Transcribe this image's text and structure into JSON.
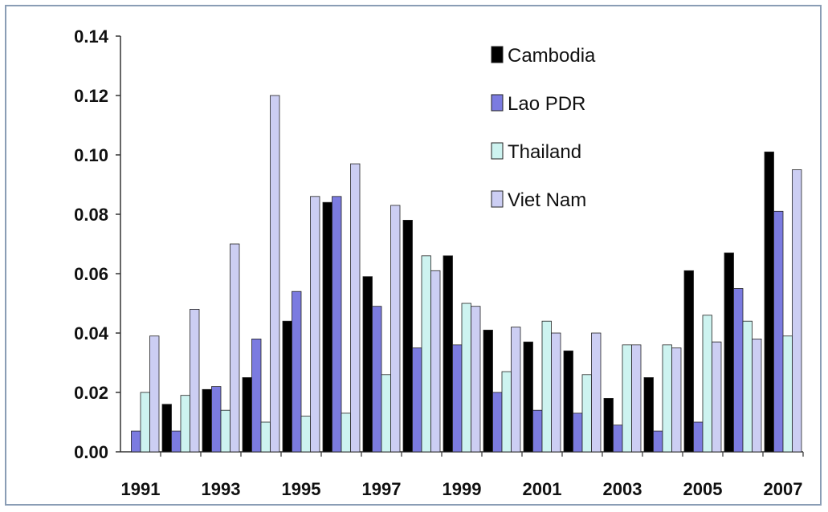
{
  "chart_data": {
    "type": "bar",
    "categories": [
      "1991",
      "1992",
      "1993",
      "1994",
      "1995",
      "1996",
      "1997",
      "1998",
      "1999",
      "2000",
      "2001",
      "2002",
      "2003",
      "2004",
      "2005",
      "2006",
      "2007"
    ],
    "x_tick_labels": [
      "1991",
      "1993",
      "1995",
      "1997",
      "1999",
      "2001",
      "2003",
      "2005",
      "2007"
    ],
    "y_tick_labels": [
      "0.00",
      "0.02",
      "0.04",
      "0.06",
      "0.08",
      "0.10",
      "0.12",
      "0.14"
    ],
    "ylim": [
      0,
      0.14
    ],
    "grid": false,
    "legend_position": "top-right",
    "series": [
      {
        "name": "Cambodia",
        "color": "#000000",
        "values": [
          0.0,
          0.016,
          0.021,
          0.025,
          0.044,
          0.084,
          0.059,
          0.078,
          0.066,
          0.041,
          0.037,
          0.034,
          0.018,
          0.025,
          0.061,
          0.067,
          0.101
        ]
      },
      {
        "name": "Lao PDR",
        "color": "#7b7be0",
        "values": [
          0.007,
          0.007,
          0.022,
          0.038,
          0.054,
          0.086,
          0.049,
          0.035,
          0.036,
          0.02,
          0.014,
          0.013,
          0.009,
          0.007,
          0.01,
          0.055,
          0.081
        ]
      },
      {
        "name": "Thailand",
        "color": "#cdf3f0",
        "values": [
          0.02,
          0.019,
          0.014,
          0.01,
          0.012,
          0.013,
          0.026,
          0.066,
          0.05,
          0.027,
          0.044,
          0.026,
          0.036,
          0.036,
          0.046,
          0.044,
          0.039
        ]
      },
      {
        "name": "Viet Nam",
        "color": "#cccef3",
        "values": [
          0.039,
          0.048,
          0.07,
          0.12,
          0.086,
          0.097,
          0.083,
          0.061,
          0.049,
          0.042,
          0.04,
          0.04,
          0.036,
          0.035,
          0.037,
          0.038,
          0.095
        ]
      }
    ]
  }
}
